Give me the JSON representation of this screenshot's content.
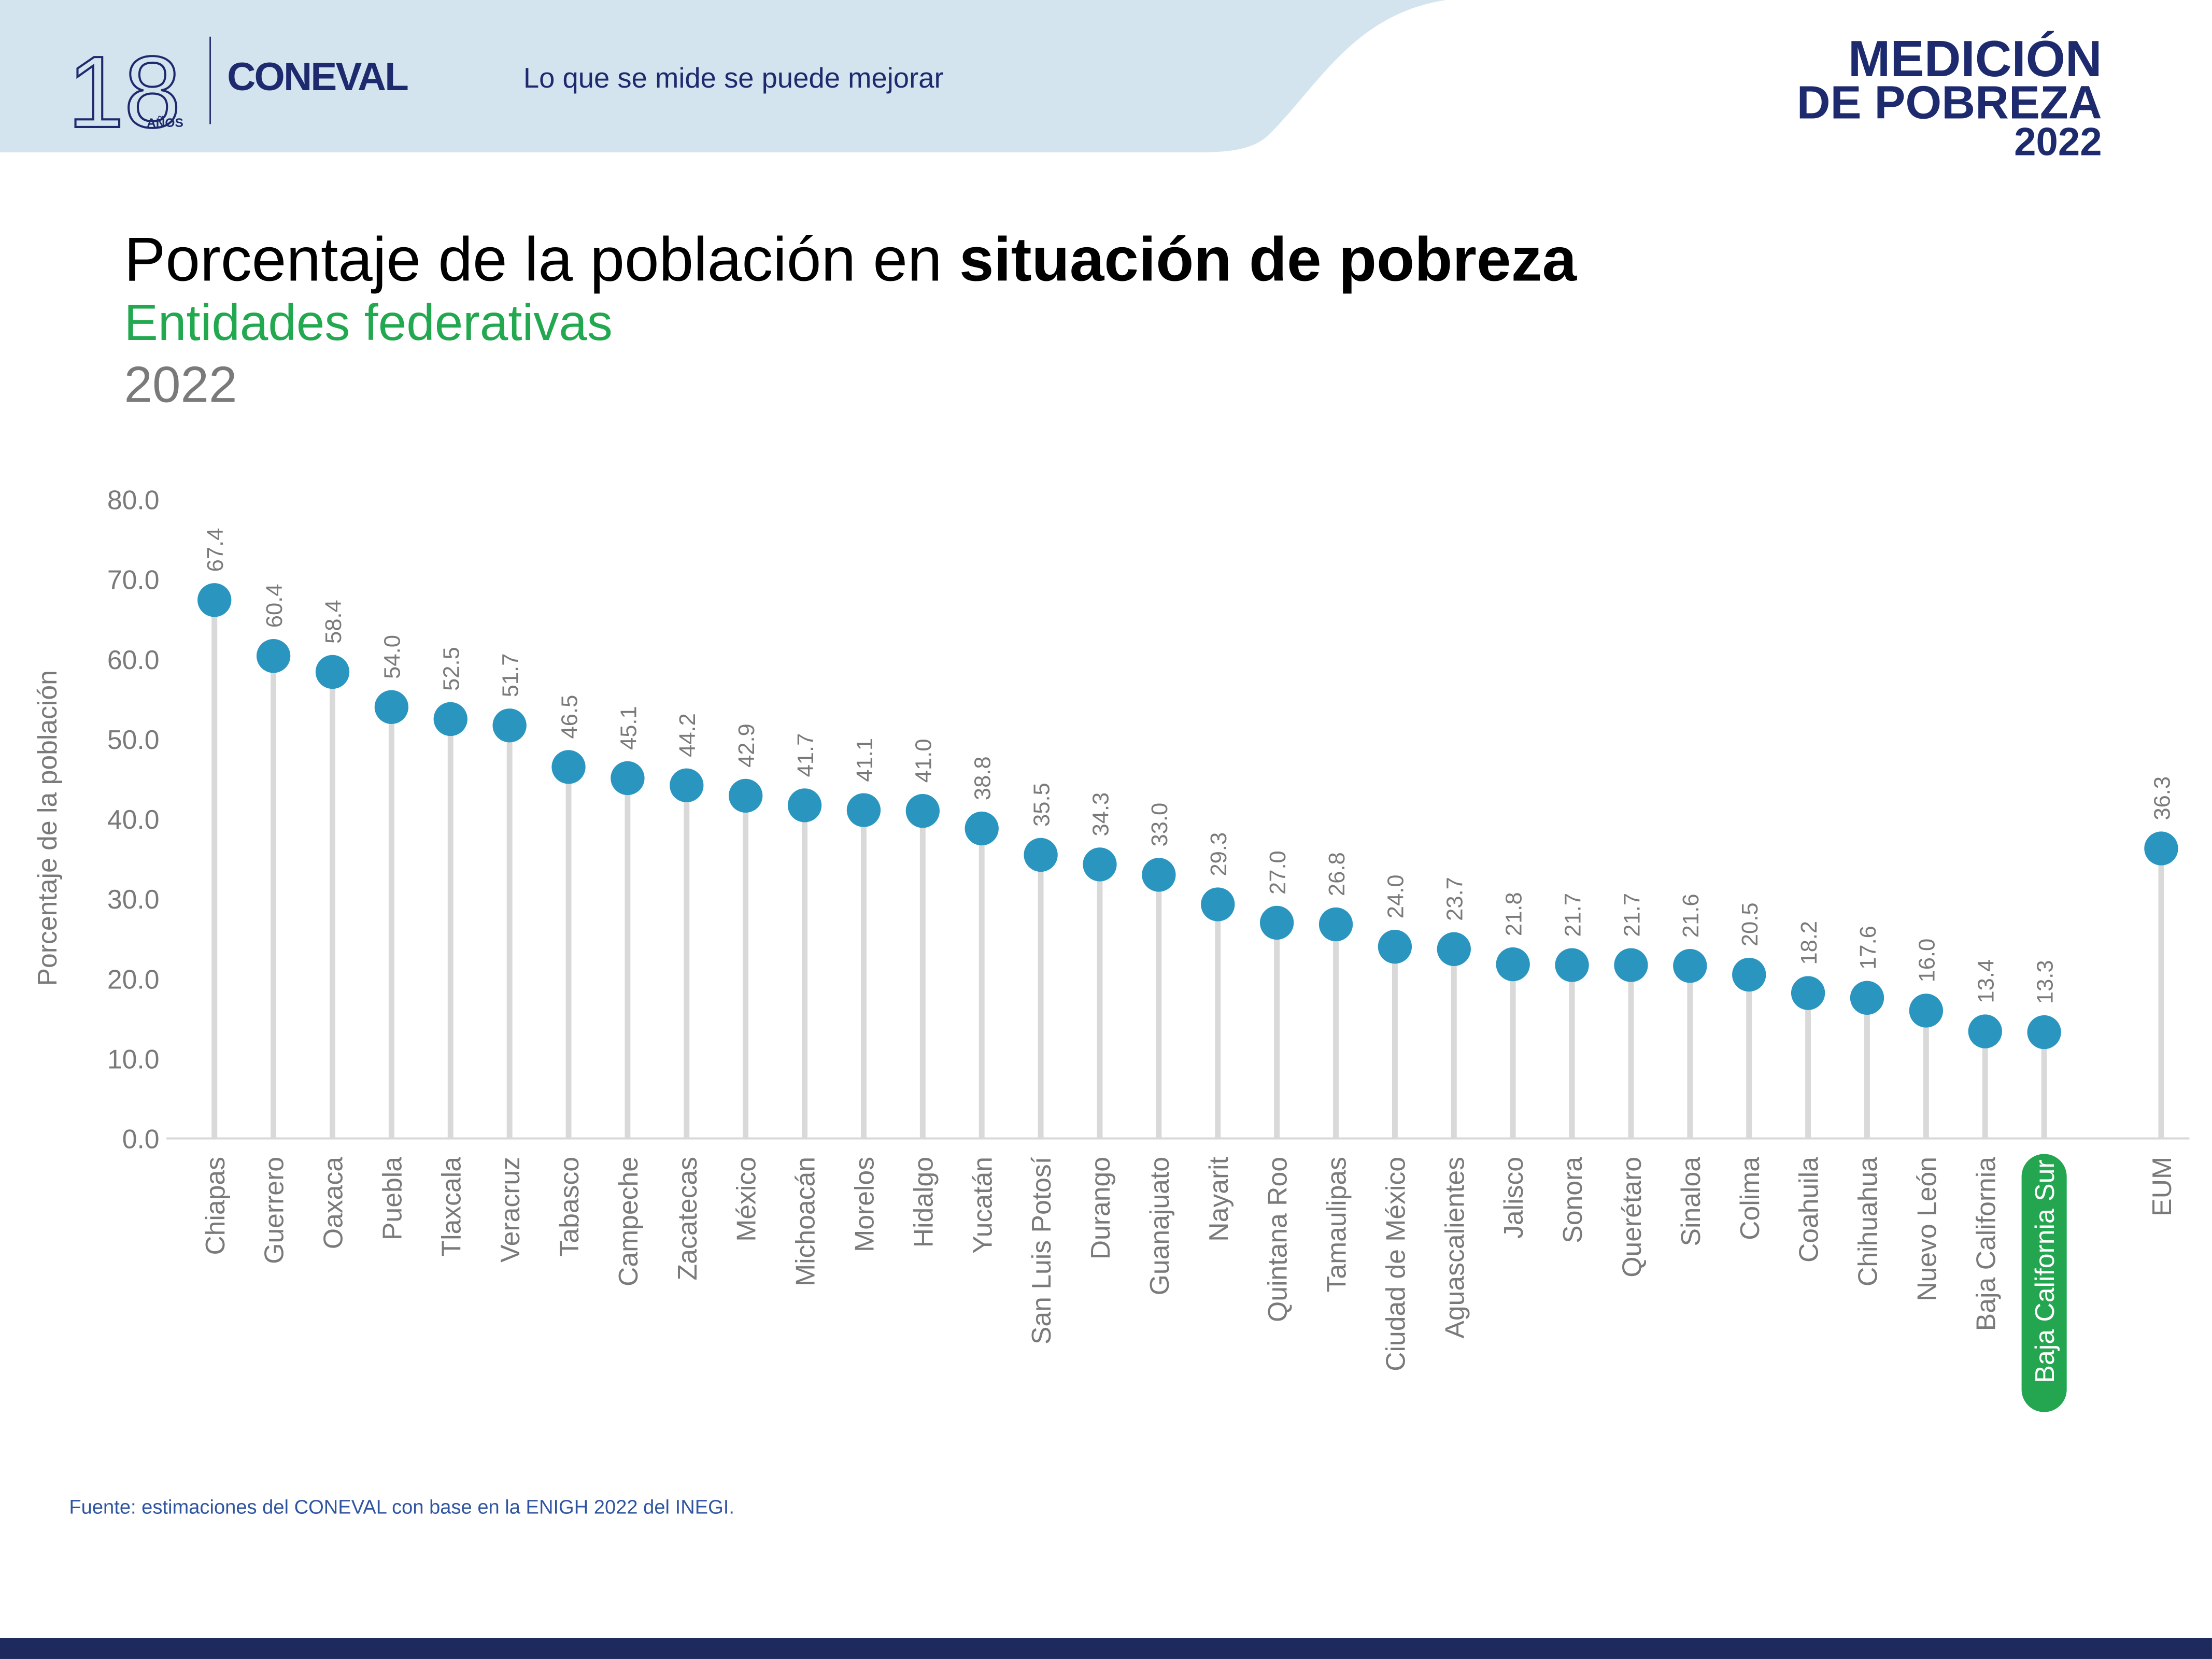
{
  "header": {
    "logo_years": "18",
    "logo_years_sub": "AÑOS",
    "logo_org": "CONEVAL",
    "tagline": "Lo que se mide se puede mejorar",
    "badge_line1": "MEDICIÓN",
    "badge_line2": "DE POBREZA",
    "badge_line3": "2022"
  },
  "title_regular": "Porcentaje de la población en ",
  "title_bold": "situación de pobreza",
  "subtitle": "Entidades federativas",
  "year": "2022",
  "source": "Fuente: estimaciones del CONEVAL con base en la ENIGH 2022 del INEGI.",
  "colors": {
    "dot": "#2a96c0",
    "stem": "#d9d9d9",
    "highlight": "#24a650",
    "header_bg": "#d4e4ee",
    "navy": "#1e2a5e"
  },
  "chart_data": {
    "type": "lollipop",
    "ylabel": "Porcentaje de la población",
    "ylim": [
      0,
      80
    ],
    "yticks": [
      "0.0",
      "10.0",
      "20.0",
      "30.0",
      "40.0",
      "50.0",
      "60.0",
      "70.0",
      "80.0"
    ],
    "grid": false,
    "highlighted_category": "Baja California Sur",
    "categories": [
      "Chiapas",
      "Guerrero",
      "Oaxaca",
      "Puebla",
      "Tlaxcala",
      "Veracruz",
      "Tabasco",
      "Campeche",
      "Zacatecas",
      "México",
      "Michoacán",
      "Morelos",
      "Hidalgo",
      "Yucatán",
      "San Luis Potosí",
      "Durango",
      "Guanajuato",
      "Nayarit",
      "Quintana Roo",
      "Tamaulipas",
      "Ciudad de México",
      "Aguascalientes",
      "Jalisco",
      "Sonora",
      "Querétaro",
      "Sinaloa",
      "Colima",
      "Coahuila",
      "Chihuahua",
      "Nuevo León",
      "Baja California",
      "Baja California Sur",
      "EUM"
    ],
    "values": [
      67.4,
      60.4,
      58.4,
      54.0,
      52.5,
      51.7,
      46.5,
      45.1,
      44.2,
      42.9,
      41.7,
      41.1,
      41.0,
      38.8,
      35.5,
      34.3,
      33.0,
      29.3,
      27.0,
      26.8,
      24.0,
      23.7,
      21.8,
      21.7,
      21.7,
      21.6,
      20.5,
      18.2,
      17.6,
      16.0,
      13.4,
      13.3,
      36.3
    ],
    "labels": [
      "67.4",
      "60.4",
      "58.4",
      "54.0",
      "52.5",
      "51.7",
      "46.5",
      "45.1",
      "44.2",
      "42.9",
      "41.7",
      "41.1",
      "41.0",
      "38.8",
      "35.5",
      "34.3",
      "33.0",
      "29.3",
      "27.0",
      "26.8",
      "24.0",
      "23.7",
      "21.8",
      "21.7",
      "21.7",
      "21.6",
      "20.5",
      "18.2",
      "17.6",
      "16.0",
      "13.4",
      "13.3",
      "36.3"
    ]
  }
}
